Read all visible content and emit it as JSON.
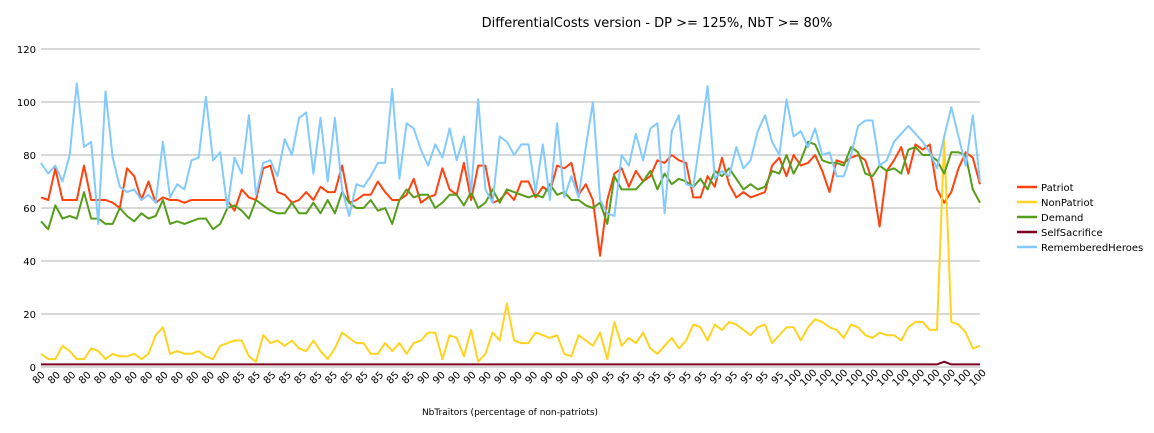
{
  "chart_data": {
    "type": "line",
    "title": "DifferentialCosts version - DP >= 125%, NbT >= 80%",
    "xlabel": "NbTraitors (percentage of non-patriots)",
    "ylabel": "",
    "ylim": [
      0,
      120
    ],
    "yticks": [
      0,
      20,
      40,
      60,
      80,
      100,
      120
    ],
    "grid": "horizontal",
    "legend_position": "right",
    "x_tick_labels": [
      "80",
      "80",
      "80",
      "80",
      "80",
      "80",
      "80",
      "80",
      "80",
      "80",
      "80",
      "80",
      "80",
      "85",
      "85",
      "85",
      "85",
      "85",
      "85",
      "85",
      "85",
      "85",
      "85",
      "85",
      "85",
      "90",
      "90",
      "90",
      "90",
      "90",
      "90",
      "90",
      "90",
      "90",
      "90",
      "90",
      "90",
      "95",
      "95",
      "95",
      "95",
      "95",
      "95",
      "95",
      "95",
      "95",
      "95",
      "95",
      "95",
      "100",
      "100",
      "100",
      "100",
      "100",
      "100",
      "100",
      "100",
      "100",
      "100",
      "100",
      "100",
      "100"
    ],
    "series": [
      {
        "name": "Patriot",
        "color": "#ff420e",
        "values": [
          64,
          63,
          75,
          63,
          63,
          63,
          76,
          63,
          63,
          63,
          62,
          60,
          75,
          72,
          63,
          70,
          62,
          64,
          63,
          63,
          62,
          63,
          63,
          63,
          63,
          63,
          63,
          59,
          67,
          64,
          63,
          75,
          76,
          66,
          65,
          62,
          63,
          66,
          63,
          68,
          66,
          66,
          76,
          62,
          63,
          65,
          65,
          70,
          66,
          63,
          63,
          65,
          71,
          62,
          64,
          65,
          75,
          67,
          65,
          77,
          63,
          76,
          76,
          62,
          63,
          66,
          63,
          70,
          70,
          64,
          68,
          66,
          76,
          75,
          77,
          65,
          69,
          63,
          42,
          63,
          73,
          75,
          68,
          74,
          70,
          72,
          78,
          77,
          80,
          78,
          77,
          64,
          64,
          72,
          68,
          79,
          69,
          64,
          66,
          64,
          65,
          66,
          76,
          79,
          72,
          80,
          76,
          77,
          80,
          74,
          66,
          78,
          77,
          79,
          80,
          78,
          70,
          53,
          74,
          78,
          83,
          73,
          84,
          82,
          84,
          67,
          62,
          66,
          75,
          81,
          79,
          69
        ]
      },
      {
        "name": "NonPatriot",
        "color": "#ffd320",
        "values": [
          5,
          3,
          3,
          8,
          6,
          3,
          3,
          7,
          6,
          3,
          5,
          4,
          4,
          5,
          3,
          5,
          12,
          15,
          5,
          6,
          5,
          5,
          6,
          4,
          3,
          8,
          9,
          10,
          10,
          4,
          2,
          12,
          9,
          10,
          8,
          10,
          7,
          6,
          10,
          6,
          3,
          7,
          13,
          11,
          9,
          9,
          5,
          5,
          9,
          6,
          9,
          5,
          9,
          10,
          13,
          13,
          3,
          12,
          11,
          4,
          14,
          2,
          5,
          13,
          10,
          24,
          10,
          9,
          9,
          13,
          12,
          11,
          12,
          5,
          4,
          12,
          10,
          8,
          13,
          3,
          17,
          8,
          11,
          9,
          13,
          7,
          5,
          8,
          11,
          7,
          10,
          16,
          15,
          10,
          16,
          14,
          17,
          16,
          14,
          12,
          15,
          16,
          9,
          12,
          15,
          15,
          10,
          15,
          18,
          17,
          15,
          14,
          11,
          16,
          15,
          12,
          11,
          13,
          12,
          12,
          10,
          15,
          17,
          17,
          14,
          14,
          86,
          17,
          16,
          13,
          7,
          8
        ]
      },
      {
        "name": "Demand",
        "color": "#579d1c",
        "values": [
          55,
          52,
          61,
          56,
          57,
          56,
          66,
          56,
          56,
          54,
          54,
          60,
          57,
          55,
          58,
          56,
          57,
          63,
          54,
          55,
          54,
          55,
          56,
          56,
          52,
          54,
          60,
          61,
          59,
          56,
          63,
          61,
          59,
          58,
          58,
          62,
          58,
          58,
          62,
          58,
          63,
          58,
          66,
          62,
          60,
          60,
          63,
          59,
          60,
          54,
          63,
          67,
          64,
          65,
          65,
          60,
          62,
          65,
          65,
          61,
          66,
          60,
          62,
          67,
          62,
          67,
          66,
          65,
          64,
          65,
          64,
          69,
          65,
          66,
          63,
          63,
          61,
          60,
          62,
          54,
          72,
          67,
          67,
          67,
          70,
          74,
          67,
          73,
          69,
          71,
          70,
          68,
          71,
          67,
          74,
          72,
          75,
          71,
          67,
          69,
          67,
          68,
          74,
          73,
          80,
          73,
          78,
          85,
          84,
          78,
          77,
          77,
          76,
          83,
          81,
          73,
          72,
          76,
          74,
          75,
          73,
          82,
          83,
          80,
          80,
          78,
          73,
          81,
          81,
          80,
          67,
          62
        ]
      },
      {
        "name": "SelfSacrifice",
        "color": "#7e0021",
        "values": [
          1,
          1,
          1,
          1,
          1,
          1,
          1,
          1,
          1,
          1,
          1,
          1,
          1,
          1,
          1,
          1,
          1,
          1,
          1,
          1,
          1,
          1,
          1,
          1,
          1,
          1,
          1,
          1,
          1,
          1,
          1,
          1,
          1,
          1,
          1,
          1,
          1,
          1,
          1,
          1,
          1,
          1,
          1,
          1,
          1,
          1,
          1,
          1,
          1,
          1,
          1,
          1,
          1,
          1,
          1,
          1,
          1,
          1,
          1,
          1,
          1,
          1,
          1,
          1,
          1,
          1,
          1,
          1,
          1,
          1,
          1,
          1,
          1,
          1,
          1,
          1,
          1,
          1,
          1,
          1,
          1,
          1,
          1,
          1,
          1,
          1,
          1,
          1,
          1,
          1,
          1,
          1,
          1,
          1,
          1,
          1,
          1,
          1,
          1,
          1,
          1,
          1,
          1,
          1,
          1,
          1,
          1,
          1,
          1,
          1,
          1,
          1,
          1,
          1,
          1,
          1,
          1,
          1,
          1,
          1,
          1,
          1,
          1,
          1,
          1,
          1,
          2,
          1,
          1,
          1,
          1,
          1
        ]
      },
      {
        "name": "RememberedHeroes",
        "color": "#83caff",
        "values": [
          77,
          73,
          76,
          70,
          80,
          107,
          83,
          85,
          54,
          104,
          79,
          68,
          66,
          67,
          63,
          65,
          62,
          85,
          64,
          69,
          67,
          78,
          79,
          102,
          78,
          81,
          60,
          79,
          73,
          95,
          65,
          77,
          78,
          72,
          86,
          80,
          94,
          96,
          73,
          94,
          70,
          94,
          67,
          57,
          69,
          68,
          72,
          77,
          77,
          105,
          71,
          92,
          90,
          82,
          76,
          84,
          79,
          90,
          78,
          87,
          66,
          101,
          67,
          62,
          87,
          85,
          80,
          84,
          84,
          66,
          84,
          63,
          92,
          64,
          72,
          64,
          83,
          100,
          63,
          58,
          57,
          80,
          76,
          88,
          78,
          90,
          92,
          58,
          89,
          95,
          69,
          68,
          87,
          106,
          71,
          74,
          72,
          83,
          75,
          78,
          89,
          95,
          85,
          80,
          101,
          87,
          89,
          83,
          90,
          80,
          81,
          72,
          72,
          80,
          91,
          93,
          93,
          76,
          78,
          85,
          88,
          91,
          88,
          85,
          81,
          75,
          87,
          98,
          87,
          76,
          95,
          70
        ]
      }
    ]
  }
}
